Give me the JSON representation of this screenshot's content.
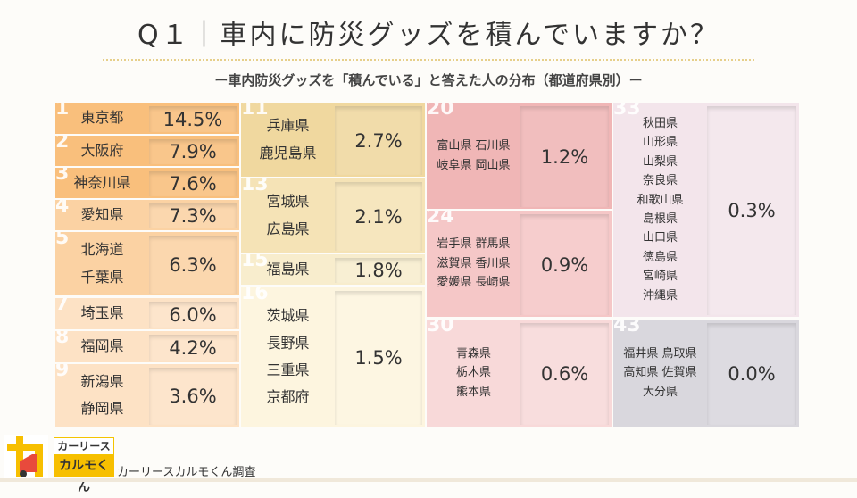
{
  "title": "Q１｜車内に防災グッズを積んでいますか？",
  "subtitle": "ー車内防災グッズを「積んでいる」と答えた人の分布（都道府県別）ー",
  "groups": [
    {
      "rank": "1",
      "names": [
        "東京都"
      ],
      "value": "14.5%",
      "color": "#f9bf7c"
    },
    {
      "rank": "2",
      "names": [
        "大阪府"
      ],
      "value": "7.9%",
      "color": "#f9bf7c"
    },
    {
      "rank": "3",
      "names": [
        "神奈川県"
      ],
      "value": "7.6%",
      "color": "#f9bf7c"
    },
    {
      "rank": "4",
      "names": [
        "愛知県"
      ],
      "value": "7.3%",
      "color": "#fbd2a3"
    },
    {
      "rank": "5",
      "names": [
        "北海道",
        "千葉県"
      ],
      "value": "6.3%",
      "color": "#fbd2a3"
    },
    {
      "rank": "7",
      "names": [
        "埼玉県"
      ],
      "value": "6.0%",
      "color": "#fde2c5"
    },
    {
      "rank": "8",
      "names": [
        "福岡県"
      ],
      "value": "4.2%",
      "color": "#fde2c5"
    },
    {
      "rank": "9",
      "names": [
        "新潟県",
        "静岡県"
      ],
      "value": "3.6%",
      "color": "#fde2c5"
    },
    {
      "rank": "11",
      "names": [
        "兵庫県",
        "鹿児島県"
      ],
      "value": "2.7%",
      "color": "#f0d89f"
    },
    {
      "rank": "13",
      "names": [
        "宮城県",
        "広島県"
      ],
      "value": "2.1%",
      "color": "#f5e3b6"
    },
    {
      "rank": "15",
      "names": [
        "福島県"
      ],
      "value": "1.8%",
      "color": "#f8edcd"
    },
    {
      "rank": "16",
      "names": [
        "茨城県",
        "長野県",
        "三重県",
        "京都府"
      ],
      "value": "1.5%",
      "color": "#fdf5df"
    },
    {
      "rank": "20",
      "names": [
        "富山県 石川県",
        "岐阜県 岡山県"
      ],
      "value": "1.2%",
      "color": "#f0b6b6"
    },
    {
      "rank": "24",
      "names": [
        "岩手県 群馬県",
        "滋賀県 香川県",
        "愛媛県 長崎県"
      ],
      "value": "0.9%",
      "color": "#f5c7c7"
    },
    {
      "rank": "30",
      "names": [
        "青森県",
        "栃木県",
        "熊本県"
      ],
      "value": "0.6%",
      "color": "#f8d9d9"
    },
    {
      "rank": "33",
      "names": [
        "秋田県",
        "山形県",
        "山梨県",
        "奈良県",
        "和歌山県",
        "島根県",
        "山口県",
        "徳島県",
        "宮崎県",
        "沖縄県"
      ],
      "value": "0.3%",
      "color": "#f3e5eb"
    },
    {
      "rank": "43",
      "names": [
        "福井県 鳥取県",
        "高知県 佐賀県",
        "大分県"
      ],
      "value": "0.0%",
      "color": "#d9d7dd"
    }
  ],
  "footer": {
    "brand_top": "カーリース",
    "brand_bottom": "カルモくん",
    "credit": "カーリースカルモくん調査"
  }
}
